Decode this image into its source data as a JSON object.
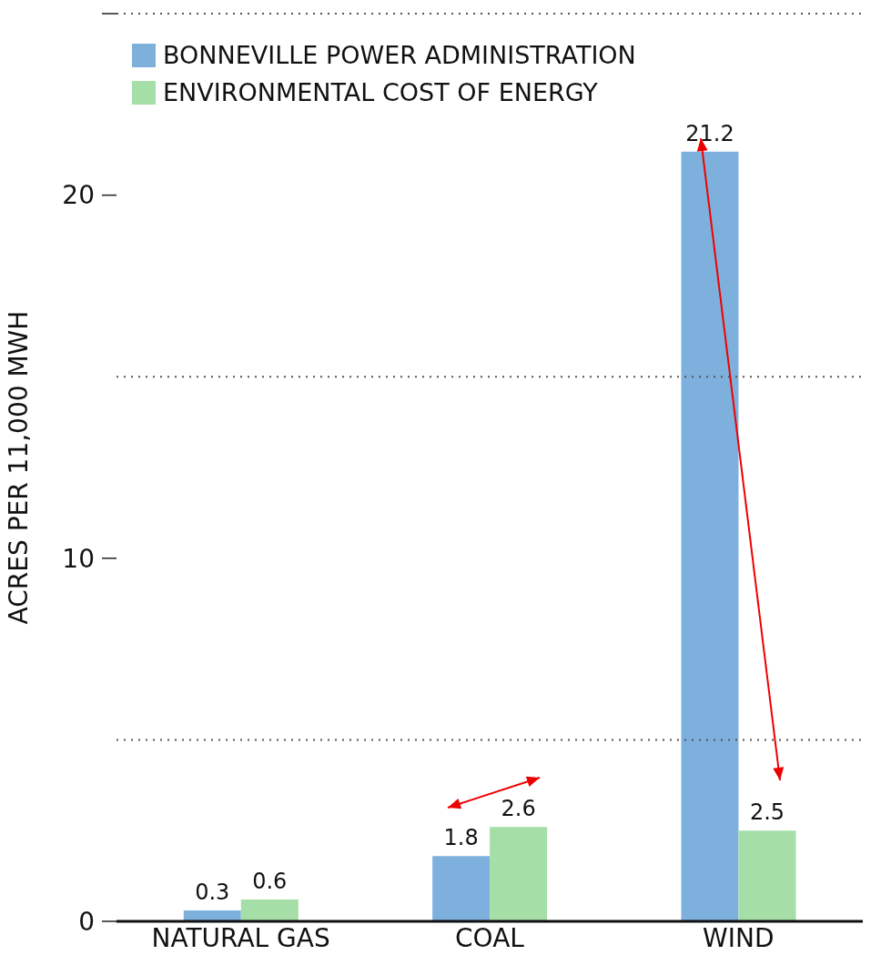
{
  "chart_data": {
    "type": "bar",
    "ylabel": "ACRES PER 11,000 MWH",
    "categories": [
      "NATURAL GAS",
      "COAL",
      "WIND"
    ],
    "series": [
      {
        "name": "BONNEVILLE POWER ADMINISTRATION",
        "color": "#7eb0dd",
        "values": [
          0.3,
          1.8,
          21.2
        ]
      },
      {
        "name": "ENVIRONMENTAL COST OF ENERGY",
        "color": "#a6dea8",
        "values": [
          0.6,
          2.6,
          2.5
        ]
      }
    ],
    "ylim": [
      0,
      25
    ],
    "yticks": [
      0,
      10,
      20,
      {
        "value": 25,
        "label": null
      }
    ],
    "ref_lines": [
      {
        "axis": "y",
        "value": 5,
        "color": "#555555",
        "line_style": "dotted"
      },
      {
        "axis": "y",
        "value": 15,
        "color": "#555555",
        "line_style": "dotted"
      },
      {
        "axis": "y",
        "value": 25,
        "color": "#555555",
        "line_style": "dotted"
      }
    ],
    "data_labels": true,
    "legend": "top left"
  }
}
